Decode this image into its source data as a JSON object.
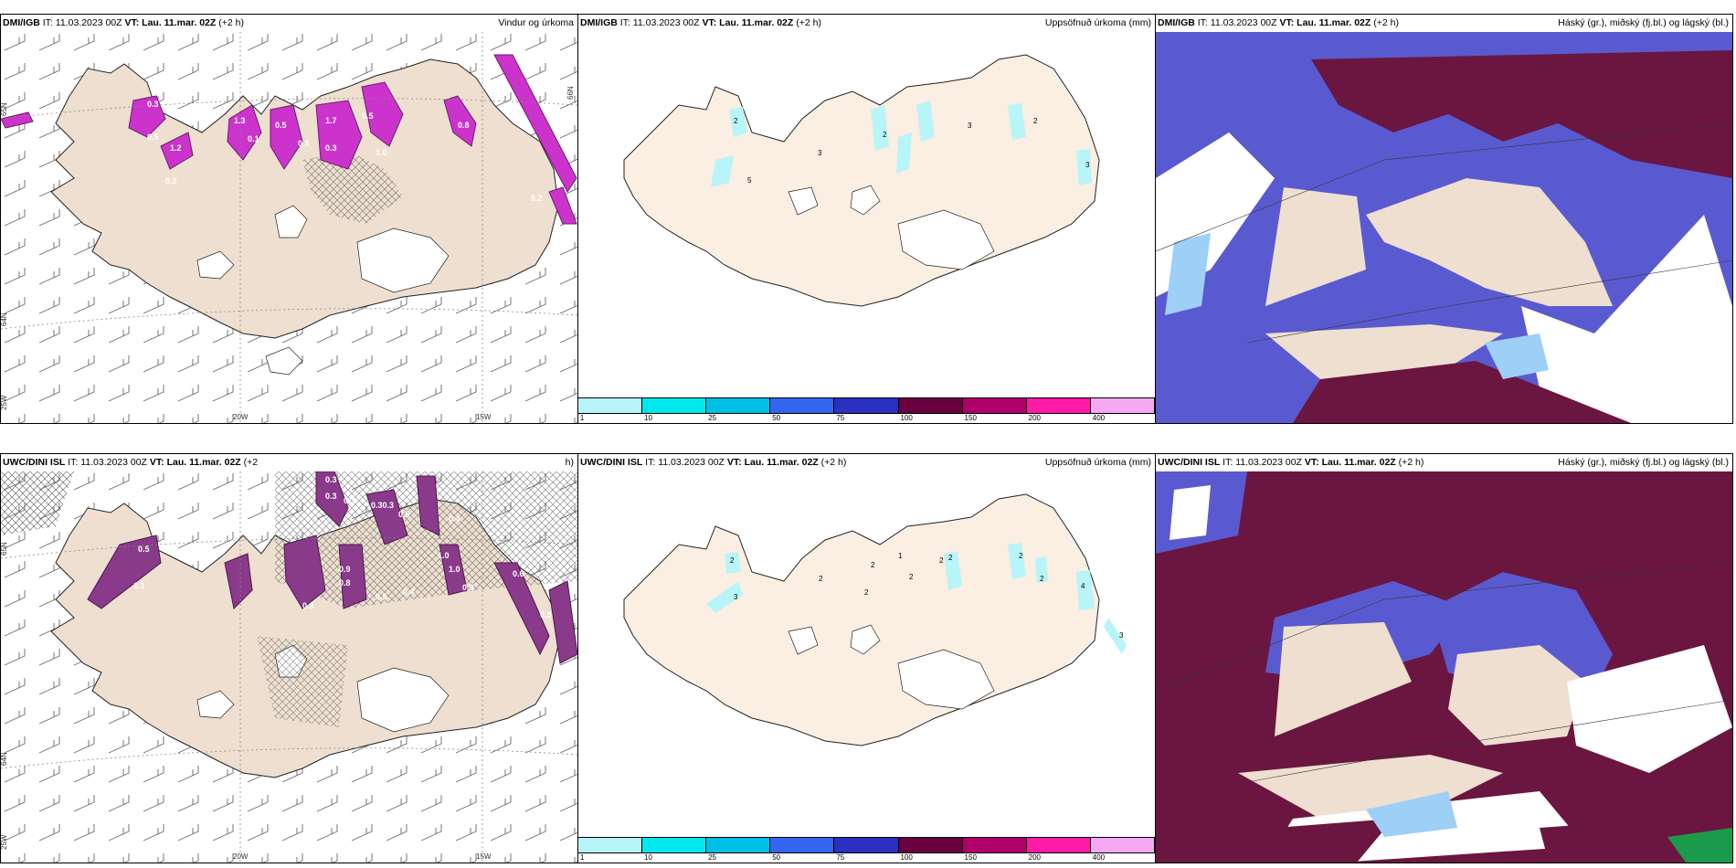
{
  "panels": [
    {
      "id": "p1",
      "source": "DMI/IGB",
      "it_label": "IT:",
      "it": "11.03.2023 00Z",
      "vt_label": "VT: Lau. 11.mar. 02Z",
      "lead": "(+2 h)",
      "title": "Vindur og úrkoma"
    },
    {
      "id": "p2",
      "source": "DMI/IGB",
      "it_label": "IT:",
      "it": "11.03.2023 00Z",
      "vt_label": "VT: Lau. 11.mar. 02Z",
      "lead": "(+2 h)",
      "title": "Uppsöfnuð úrkoma (mm)"
    },
    {
      "id": "p3",
      "source": "DMI/IGB",
      "it_label": "IT:",
      "it": "11.03.2023 00Z",
      "vt_label": "VT: Lau. 11.mar. 02Z",
      "lead": "(+2 h)",
      "title": "Háský (gr.), miðský (fj.bl.) og lágský (bl.)"
    },
    {
      "id": "p4",
      "source": "UWC/DINI ISL",
      "it_label": "IT:",
      "it": "11.03.2023 00Z",
      "vt_label": "VT: Lau. 11.mar. 02Z",
      "lead": "(+2",
      "title": "h)"
    },
    {
      "id": "p5",
      "source": "UWC/DINI ISL",
      "it_label": "IT:",
      "it": "11.03.2023 00Z",
      "vt_label": "VT: Lau. 11.mar. 02Z",
      "lead": "(+2 h)",
      "title": "Uppsöfnuð úrkoma (mm)"
    },
    {
      "id": "p6",
      "source": "UWC/DINI ISL",
      "it_label": "IT:",
      "it": "11.03.2023 00Z",
      "vt_label": "VT: Lau. 11.mar. 02Z",
      "lead": "(+2 h)",
      "title": "Háský (gr.), miðský (fj.bl.) og lágský (bl.)"
    }
  ],
  "wind_axes": {
    "lat_labels": [
      "65N",
      "64N",
      "25W"
    ],
    "lon_labels": [
      "20W",
      "15W"
    ],
    "top_right": "66N"
  },
  "precip_top_values": [
    "0.3",
    "0.5",
    "1.2",
    "0.2",
    "1.3",
    "0.1",
    "0.5",
    "0.3",
    "1.7",
    "0.3",
    "0.5",
    "1.0",
    "0.8",
    "0.2"
  ],
  "precip_bottom_values": [
    "0.3",
    "0.3",
    "0.3",
    "0.30.3",
    "0.5",
    "0.5",
    "0.4",
    "1.0",
    "0.9",
    "0.8",
    "0.5",
    "0.4",
    "1.0",
    "0.8",
    "0.6",
    "0.3",
    "1.1",
    "0.3"
  ],
  "accum_top_values": [
    "2",
    "2",
    "3",
    "3",
    "2",
    "5",
    "3"
  ],
  "accum_bottom_values": [
    "2",
    "2",
    "2",
    "2",
    "1",
    "2",
    "2",
    "2",
    "2",
    "2",
    "4",
    "3",
    "3"
  ],
  "legend": {
    "ticks": [
      "1",
      "10",
      "25",
      "50",
      "75",
      "100",
      "150",
      "200",
      "400"
    ],
    "colors": [
      "#b8f5f8",
      "#00e8ee",
      "#00bfe6",
      "#3366f0",
      "#2a30c0",
      "#6a0040",
      "#b0006a",
      "#ff1aa8",
      "#f6a8f2"
    ]
  },
  "colors": {
    "land": "#eedfd0",
    "land_precip": "#fbeee2",
    "sea": "#ffffff",
    "high": "#6a1640",
    "mid": "#5a5ad0",
    "low": "#9ecff6",
    "magenta": "#cc33cc",
    "dark_magenta": "#7a2a7a"
  }
}
